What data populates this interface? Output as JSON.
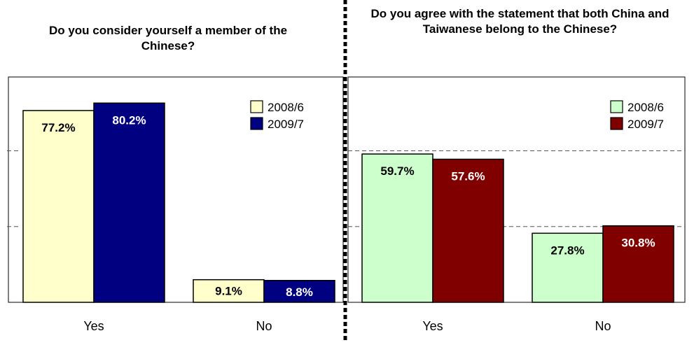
{
  "charts_meta": {
    "divider_color": "#000000",
    "gridline_color": "#555555"
  },
  "chart_data": [
    {
      "type": "bar",
      "title": "Do you consider yourself a member of the Chinese?",
      "categories": [
        "Yes",
        "No"
      ],
      "series": [
        {
          "name": "2008/6",
          "values": [
            77.2,
            9.1
          ],
          "color": "#FFFFCC",
          "label_color": "#000000"
        },
        {
          "name": "2009/7",
          "values": [
            80.2,
            8.8
          ],
          "color": "#000080",
          "label_color": "#FFFFFF"
        }
      ],
      "value_labels": [
        [
          "77.2%",
          "9.1%"
        ],
        [
          "80.2%",
          "8.8%"
        ]
      ],
      "xlabel": "",
      "ylabel": "",
      "ylim": [
        0,
        100
      ],
      "grid": false,
      "legend": "top-right"
    },
    {
      "type": "bar",
      "title": "Do you agree with the statement that both China and Taiwanese belong to the Chinese?",
      "categories": [
        "Yes",
        "No"
      ],
      "series": [
        {
          "name": "2008/6",
          "values": [
            59.7,
            27.8
          ],
          "color": "#CCFFCC",
          "label_color": "#000000"
        },
        {
          "name": "2009/7",
          "values": [
            57.6,
            30.8
          ],
          "color": "#800000",
          "label_color": "#FFFFFF"
        }
      ],
      "value_labels": [
        [
          "59.7%",
          "27.8%"
        ],
        [
          "57.6%",
          "30.8%"
        ]
      ],
      "xlabel": "",
      "ylabel": "",
      "ylim": [
        0,
        100
      ],
      "grid": true,
      "gridlines": [
        20,
        40
      ],
      "legend": "top-right"
    }
  ]
}
